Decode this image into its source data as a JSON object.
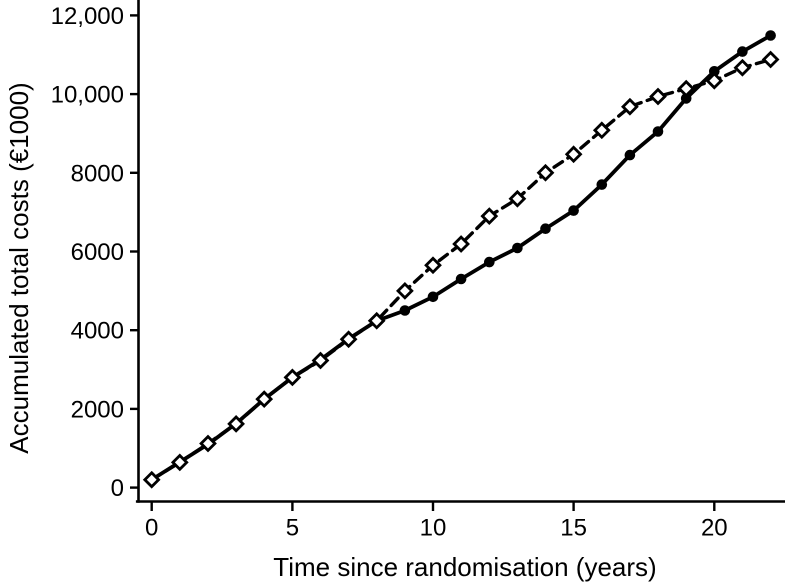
{
  "chart_data": {
    "type": "line",
    "title": "",
    "xlabel": "Time since randomisation (years)",
    "ylabel": "Accumulated total costs (€1000)",
    "x": [
      0,
      1,
      2,
      3,
      4,
      5,
      6,
      7,
      8,
      9,
      10,
      11,
      12,
      13,
      14,
      15,
      16,
      17,
      18,
      19,
      20,
      21,
      22
    ],
    "series": [
      {
        "name": "solid line with filled circle markers",
        "line_style": "solid",
        "marker": "filled-circle",
        "values": [
          200,
          650,
          1100,
          1630,
          2250,
          2800,
          3250,
          3780,
          4240,
          4500,
          4850,
          5300,
          5730,
          6090,
          6580,
          7040,
          7700,
          8450,
          9050,
          9890,
          10580,
          11080,
          11490
        ]
      },
      {
        "name": "dashed line with open diamond markers",
        "line_style": "dashed",
        "marker": "open-diamond",
        "values": [
          200,
          640,
          1120,
          1620,
          2250,
          2800,
          3230,
          3770,
          4240,
          5000,
          5650,
          6190,
          6900,
          7340,
          8000,
          8470,
          9080,
          9680,
          9940,
          10140,
          10340,
          10670,
          10880
        ]
      }
    ],
    "x_ticks": {
      "values": [
        0,
        5,
        10,
        15,
        20
      ],
      "labels": [
        "0",
        "5",
        "10",
        "15",
        "20"
      ]
    },
    "y_ticks": {
      "values": [
        0,
        2000,
        4000,
        6000,
        8000,
        10000,
        12000
      ],
      "labels": [
        "0",
        "2000",
        "4000",
        "6000",
        "8000",
        "10,000",
        "12,000"
      ]
    },
    "xlim": [
      0,
      22
    ],
    "ylim": [
      0,
      12000
    ],
    "grid": false,
    "legend": "none",
    "colors": {
      "foreground": "#000000",
      "background": "#ffffff"
    }
  }
}
